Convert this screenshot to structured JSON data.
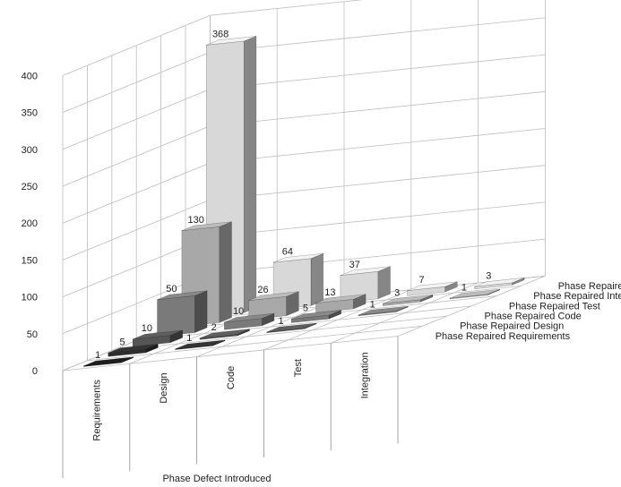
{
  "chart_data": {
    "type": "bar",
    "subtype": "3d-column",
    "title": "",
    "xlabel": "Phase Defect Introduced",
    "categories": [
      "Requirements",
      "Design",
      "Code",
      "Test",
      "Integration"
    ],
    "ylim": [
      0,
      400
    ],
    "yticks": [
      0,
      50,
      100,
      150,
      200,
      250,
      300,
      350,
      400
    ],
    "grid": true,
    "series": [
      {
        "name": "Phase Repaired Requirements",
        "color": "#1a1a1a",
        "values": [
          1,
          null,
          null,
          null,
          null
        ]
      },
      {
        "name": "Phase Repaired Design",
        "color": "#2e2e2e",
        "values": [
          5,
          1,
          null,
          null,
          null
        ]
      },
      {
        "name": "Phase Repaired Code",
        "color": "#555555",
        "values": [
          10,
          2,
          1,
          null,
          null
        ]
      },
      {
        "name": "Phase Repaired Test",
        "color": "#7a7a7a",
        "values": [
          50,
          10,
          5,
          1,
          null
        ]
      },
      {
        "name": "Phase Repaired Integration",
        "color": "#a8a8a8",
        "values": [
          130,
          26,
          13,
          3,
          1
        ]
      },
      {
        "name": "Phase Repaired Operational",
        "color": "#d8d8d8",
        "values": [
          368,
          64,
          37,
          7,
          3
        ]
      }
    ]
  }
}
